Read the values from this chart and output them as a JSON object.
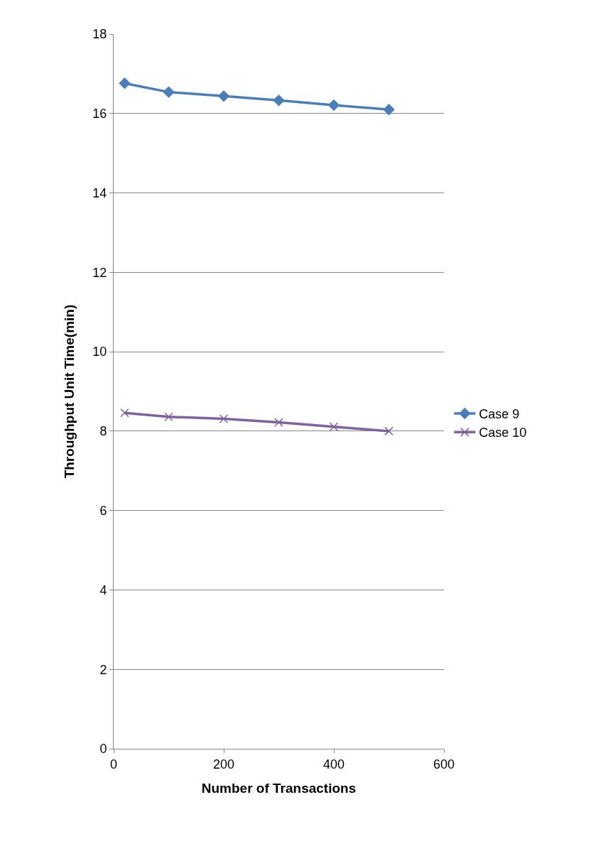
{
  "chart_data": {
    "type": "line",
    "xlabel": "Number of Transactions",
    "ylabel": "Throughput Unit Time(min)",
    "x": [
      20,
      100,
      200,
      300,
      400,
      500
    ],
    "series": [
      {
        "name": "Case 9",
        "color": "#4a7ebb",
        "marker": "diamond",
        "values": [
          16.76,
          16.54,
          16.44,
          16.33,
          16.21,
          16.1
        ]
      },
      {
        "name": "Case 10",
        "color": "#7f62a0",
        "marker": "cross",
        "values": [
          8.46,
          8.36,
          8.31,
          8.22,
          8.11,
          8.0
        ]
      }
    ],
    "xlim": [
      0,
      600
    ],
    "xticks": [
      0,
      200,
      400,
      600
    ],
    "ylim": [
      0,
      18
    ],
    "yticks": [
      0,
      2,
      4,
      6,
      8,
      10,
      12,
      14,
      16,
      18
    ],
    "grid": "y",
    "legend": "right",
    "line_style": "solid"
  }
}
